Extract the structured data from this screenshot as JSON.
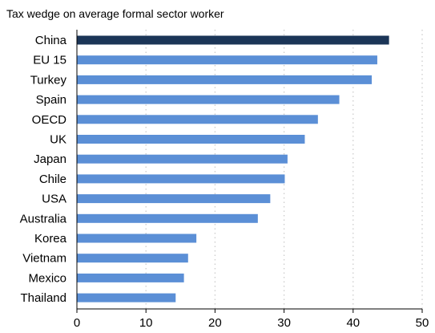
{
  "chart_data": {
    "type": "bar",
    "orientation": "horizontal",
    "title": "Tax wedge on average formal sector worker",
    "categories": [
      "China",
      "EU 15",
      "Turkey",
      "Spain",
      "OECD",
      "UK",
      "Japan",
      "Chile",
      "USA",
      "Australia",
      "Korea",
      "Vietnam",
      "Mexico",
      "Thailand"
    ],
    "values": [
      45.2,
      43.5,
      42.7,
      38.0,
      34.9,
      33.0,
      30.5,
      30.1,
      28.0,
      26.2,
      17.3,
      16.1,
      15.5,
      14.3
    ],
    "highlight_category": "China",
    "xlim": [
      0,
      50
    ],
    "xticks": [
      0,
      10,
      20,
      30,
      40,
      50
    ],
    "grid": "vertical dotted",
    "colors": {
      "bar": "#5b8fd6",
      "highlight_bar": "#1b3557",
      "grid": "#c8c8c8",
      "axis": "#000000"
    }
  }
}
